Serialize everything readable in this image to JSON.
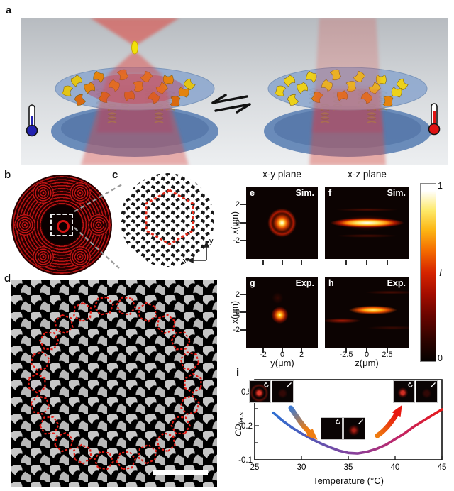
{
  "panels": {
    "a": "a",
    "b": "b",
    "c": "c",
    "d": "d",
    "e": "e",
    "f": "f",
    "g": "g",
    "h": "h",
    "i": "i"
  },
  "panel_c": {
    "axis_x_label": "x",
    "axis_y_label": "y"
  },
  "maps": {
    "column_titles": [
      "x-y plane",
      "x-z plane"
    ],
    "sim_tag": "Sim.",
    "exp_tag": "Exp.",
    "y_axis_label": "x(μm)",
    "xy_x_axis_label": "y(μm)",
    "xz_x_axis_label": "z(μm)",
    "y_ticks": [
      "2",
      "0",
      "-2"
    ],
    "xy_x_ticks": [
      "-2",
      "0",
      "2"
    ],
    "xz_x_ticks": [
      "-2.5",
      "0",
      "2.5"
    ],
    "colorbar": {
      "max": "1",
      "min": "0",
      "label": "I"
    }
  },
  "chart_data": {
    "type": "line",
    "title": "",
    "xlabel": "Temperature (°C)",
    "ylabel": "CD_lens",
    "ylabel_main": "CD",
    "ylabel_sub": "lens",
    "xlim": [
      25,
      45
    ],
    "ylim": [
      -0.1,
      0.6
    ],
    "xticks": [
      "25",
      "30",
      "35",
      "40",
      "45"
    ],
    "yticks": [
      "0.5",
      "0.2",
      "-0.1"
    ],
    "ytick_values": [
      0.5,
      0.2,
      -0.1
    ],
    "grid": false,
    "x": [
      27,
      28,
      29,
      30,
      31,
      32,
      33,
      34,
      35,
      36,
      37,
      38,
      39,
      40,
      41,
      42,
      43,
      44,
      45
    ],
    "y": [
      0.31,
      0.24,
      0.18,
      0.13,
      0.085,
      0.045,
      0.01,
      -0.02,
      -0.04,
      -0.045,
      -0.03,
      -0.005,
      0.03,
      0.08,
      0.13,
      0.19,
      0.24,
      0.29,
      0.34
    ],
    "line_gradient": [
      "#2e6fd2",
      "#5c55b2",
      "#8c3f98",
      "#c22566",
      "#e81818"
    ],
    "insets": [
      {
        "temperature_region": "low",
        "left_icon": "circular-polarization",
        "right_icon": "linear-polarization",
        "left_spot": "focal-ring",
        "right_spot": "dark"
      },
      {
        "temperature_region": "middle",
        "left_icon": "circular-polarization",
        "right_icon": "linear-polarization",
        "left_spot": "dark",
        "right_spot": "faint-blob"
      },
      {
        "temperature_region": "high",
        "left_icon": "circular-polarization",
        "right_icon": "linear-polarization",
        "left_spot": "focal-spot",
        "right_spot": "dark"
      }
    ]
  }
}
